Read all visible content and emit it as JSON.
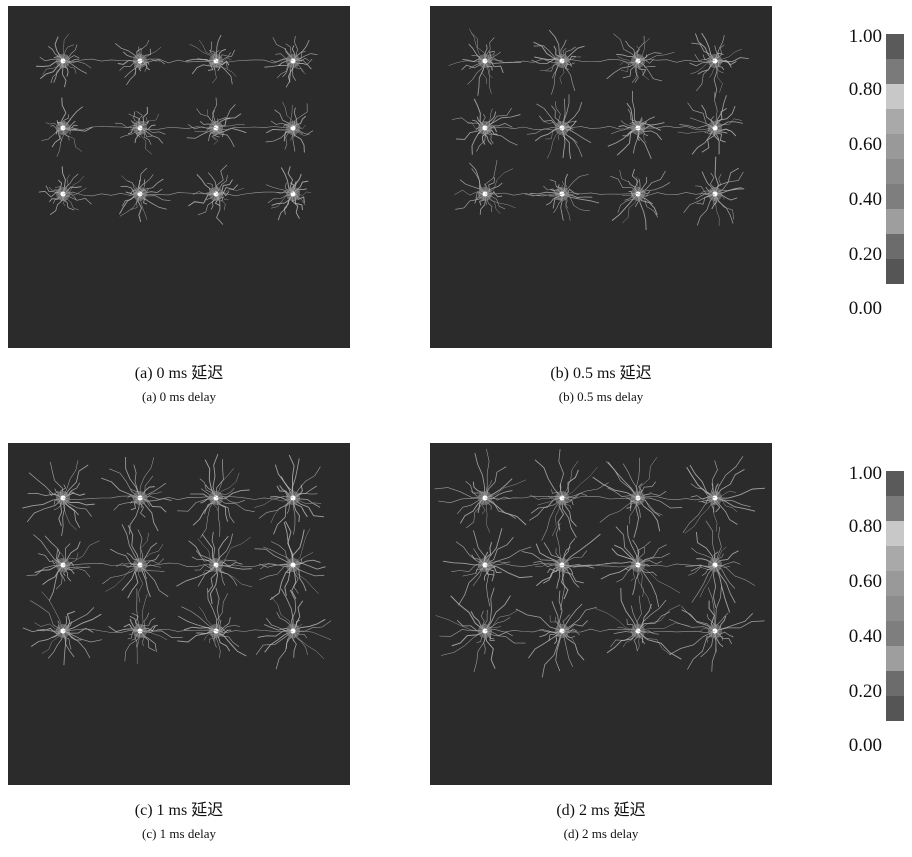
{
  "panels": [
    {
      "id": "a",
      "zh": "(a) 0 ms 延迟",
      "en": "(a) 0 ms delay"
    },
    {
      "id": "b",
      "zh": "(b) 0.5 ms 延迟",
      "en": "(b) 0.5 ms delay"
    },
    {
      "id": "c",
      "zh": "(c) 1 ms 延迟",
      "en": "(c) 1 ms delay"
    },
    {
      "id": "d",
      "zh": "(d) 2 ms 延迟",
      "en": "(d) 2 ms delay"
    }
  ],
  "scale_labels": [
    "1.00",
    "0.80",
    "0.60",
    "0.40",
    "0.20",
    "0.00"
  ],
  "scale_colors": [
    "#5a5a5a",
    "#7a7a7a",
    "#c8c8c8",
    "#a9a9a9",
    "#999999",
    "#8c8c8c",
    "#7e7e7e",
    "#9e9e9e",
    "#6c6c6c",
    "#555555"
  ],
  "panel_bg": "#2b2b2b",
  "hole_rows": 3,
  "hole_cols": 4
}
